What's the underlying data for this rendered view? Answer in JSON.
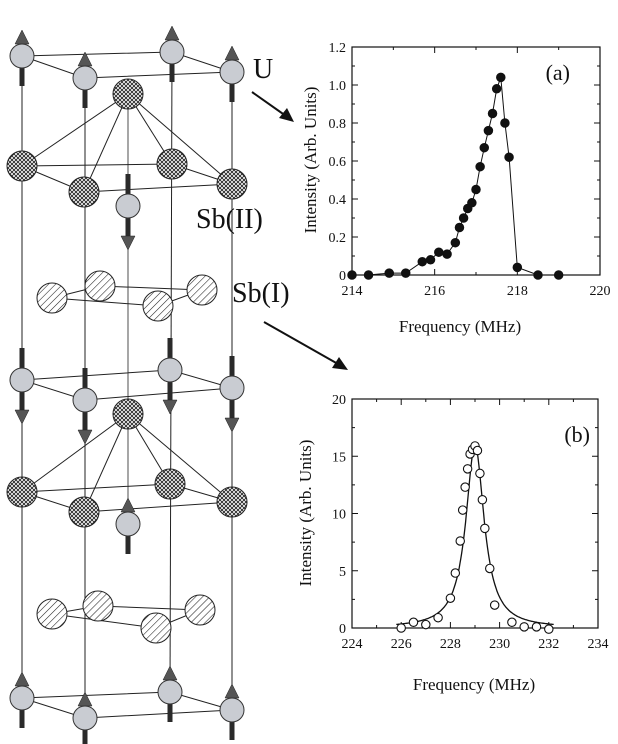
{
  "structure": {
    "labels": {
      "u": "U",
      "sb2": "Sb(II)",
      "sb1": "Sb(I)"
    },
    "colors": {
      "u_atom": "#c9ccd2",
      "sb_atom_fill": "#ffffff",
      "line": "#222222",
      "arrow": "#2a2a2a"
    }
  },
  "chart_data": [
    {
      "type": "line",
      "panel_label": "(a)",
      "title": "",
      "xlabel": "Frequency (MHz)",
      "ylabel": "Intensity (Arb. Units)",
      "xlim": [
        214,
        220
      ],
      "ylim": [
        0,
        1.2
      ],
      "xticks": [
        "214",
        "216",
        "218",
        "220"
      ],
      "yticks": [
        "0",
        "0.2",
        "0.4",
        "0.6",
        "0.8",
        "1.0",
        "1.2"
      ],
      "marker": "filled-circle",
      "connect_points": true,
      "x": [
        214.0,
        214.4,
        214.9,
        215.3,
        215.7,
        215.9,
        216.1,
        216.3,
        216.5,
        216.6,
        216.7,
        216.8,
        216.9,
        217.0,
        217.1,
        217.2,
        217.3,
        217.4,
        217.5,
        217.6,
        217.7,
        217.8,
        218.0,
        218.5,
        219.0
      ],
      "y": [
        0.0,
        0.0,
        0.01,
        0.01,
        0.07,
        0.08,
        0.12,
        0.11,
        0.17,
        0.25,
        0.3,
        0.35,
        0.38,
        0.45,
        0.57,
        0.67,
        0.76,
        0.85,
        0.98,
        1.04,
        0.8,
        0.62,
        0.04,
        0.0,
        0.0
      ]
    },
    {
      "type": "scatter",
      "panel_label": "(b)",
      "title": "",
      "xlabel": "Frequency (MHz)",
      "ylabel": "Intensity (Arb. Units)",
      "xlim": [
        224,
        234
      ],
      "ylim": [
        0,
        20
      ],
      "xticks": [
        "224",
        "226",
        "228",
        "230",
        "232",
        "234"
      ],
      "yticks": [
        "0",
        "5",
        "10",
        "15",
        "20"
      ],
      "marker": "open-circle",
      "fit_line": true,
      "fit_center": 229.0,
      "fit_gamma": 0.45,
      "fit_amplitude": 16.0,
      "x": [
        226.0,
        226.5,
        227.0,
        227.5,
        228.0,
        228.2,
        228.4,
        228.5,
        228.6,
        228.7,
        228.8,
        228.9,
        229.0,
        229.1,
        229.2,
        229.3,
        229.4,
        229.6,
        229.8,
        230.5,
        231.0,
        231.5,
        232.0
      ],
      "y": [
        0.0,
        0.5,
        0.3,
        0.9,
        2.6,
        4.8,
        7.6,
        10.3,
        12.3,
        13.9,
        15.2,
        15.6,
        15.9,
        15.5,
        13.5,
        11.2,
        8.7,
        5.2,
        2.0,
        0.5,
        0.1,
        0.1,
        -0.1
      ]
    }
  ]
}
